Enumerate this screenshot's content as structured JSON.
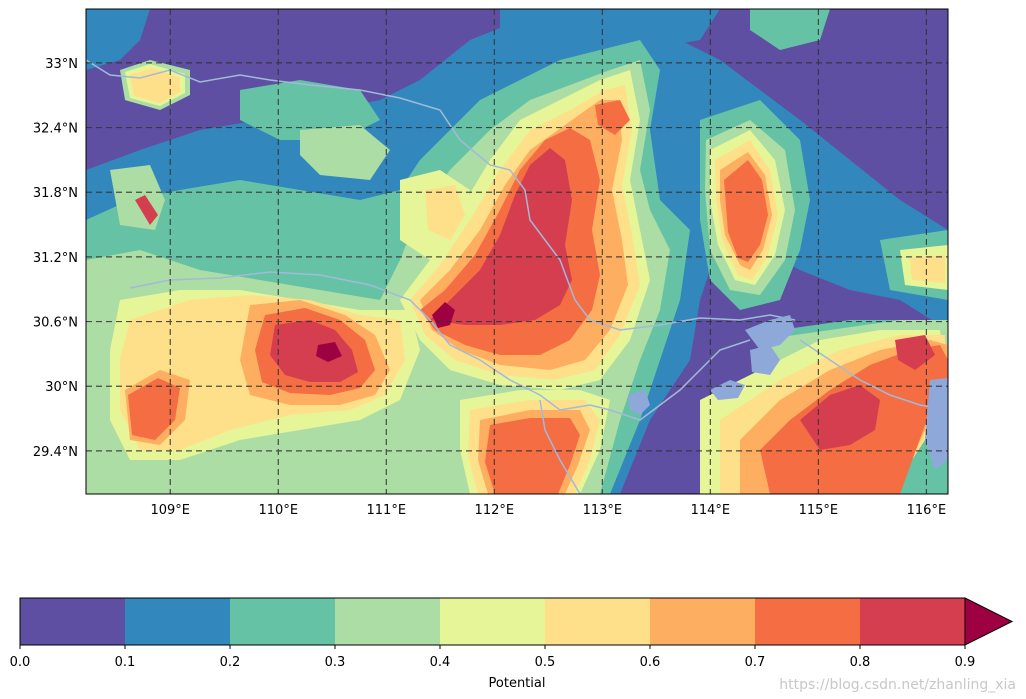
{
  "map": {
    "lon_ticks": [
      "109°E",
      "110°E",
      "111°E",
      "112°E",
      "113°E",
      "114°E",
      "115°E",
      "116°E"
    ],
    "lat_ticks": [
      "33°N",
      "32.4°N",
      "31.8°N",
      "31.2°N",
      "30.6°N",
      "30°N",
      "29.4°N"
    ],
    "extent": {
      "lon": [
        108.22,
        116.2
      ],
      "lat": [
        29.0,
        33.5
      ]
    },
    "gridlines": "dashed",
    "background_color": "#5e4fa2",
    "river_color": "#a3b9d9",
    "lake_color": "#8ea9d9"
  },
  "colorbar": {
    "label": "Potential",
    "ticks": [
      "0.0",
      "0.1",
      "0.2",
      "0.3",
      "0.4",
      "0.5",
      "0.6",
      "0.7",
      "0.8",
      "0.9"
    ],
    "levels": [
      0.0,
      0.1,
      0.2,
      0.3,
      0.4,
      0.5,
      0.6,
      0.7,
      0.8,
      0.9
    ],
    "colors": [
      "#5e4fa2",
      "#3288bd",
      "#66c2a5",
      "#abdda4",
      "#e6f598",
      "#fee08b",
      "#fdae61",
      "#f46d43",
      "#d53e4f",
      "#9e0142"
    ],
    "extend": "max",
    "extend_color": "#9e0142"
  },
  "watermark": "https://blog.csdn.net/zhanling_xia"
}
